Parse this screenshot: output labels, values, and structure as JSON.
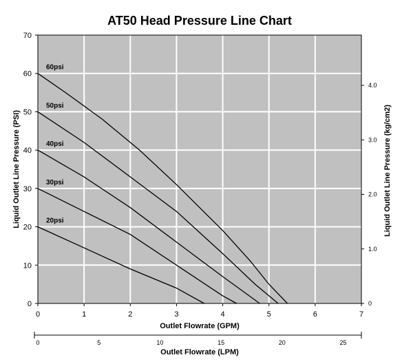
{
  "chart_data": {
    "type": "line",
    "title": "AT50 Head Pressure Line Chart",
    "xlabel": "Outlet Flowrate (GPM)",
    "ylabel": "Liquid Outlet Line Pressure (PSI)",
    "y2label": "Liquid Outlet Line Pressure (kg/cm2)",
    "x2label": "Outlet Flowrate (LPM)",
    "xlim": [
      0,
      7
    ],
    "ylim": [
      0,
      70
    ],
    "xticks": [
      "0",
      "1",
      "2",
      "3",
      "4",
      "5",
      "6",
      "7"
    ],
    "yticks": [
      "0",
      "10",
      "20",
      "30",
      "40",
      "50",
      "60",
      "70"
    ],
    "y2ticks": [
      "0",
      "1.0",
      "2.0",
      "3.0",
      "4.0"
    ],
    "y2_values": [
      0,
      1.0,
      2.0,
      3.0,
      4.0
    ],
    "x2ticks": [
      "0",
      "5",
      "10",
      "15",
      "20",
      "25"
    ],
    "x2_values": [
      0,
      5,
      10,
      15,
      20,
      25
    ],
    "grid": true,
    "background": "#c0c0c0",
    "line_color": "#000000",
    "series": [
      {
        "name": "60psi",
        "points": [
          [
            0,
            60
          ],
          [
            0.6,
            55
          ],
          [
            1.4,
            48
          ],
          [
            2.2,
            40
          ],
          [
            3,
            31
          ],
          [
            4,
            19
          ],
          [
            4.6,
            11
          ],
          [
            5.0,
            5
          ],
          [
            5.4,
            0
          ]
        ]
      },
      {
        "name": "50psi",
        "points": [
          [
            0,
            50
          ],
          [
            1,
            42
          ],
          [
            2,
            33
          ],
          [
            3,
            24
          ],
          [
            4,
            13
          ],
          [
            4.7,
            5
          ],
          [
            5.2,
            0
          ]
        ]
      },
      {
        "name": "40psi",
        "points": [
          [
            0,
            40
          ],
          [
            1,
            33
          ],
          [
            2,
            25
          ],
          [
            3,
            16
          ],
          [
            4,
            7
          ],
          [
            4.8,
            0
          ]
        ]
      },
      {
        "name": "30psi",
        "points": [
          [
            0,
            30
          ],
          [
            1,
            24
          ],
          [
            2,
            18
          ],
          [
            3,
            10
          ],
          [
            4,
            2
          ],
          [
            4.3,
            0
          ]
        ]
      },
      {
        "name": "20psi",
        "points": [
          [
            0,
            20
          ],
          [
            1,
            14.5
          ],
          [
            2,
            9
          ],
          [
            3,
            4
          ],
          [
            3.6,
            0
          ]
        ]
      }
    ]
  }
}
